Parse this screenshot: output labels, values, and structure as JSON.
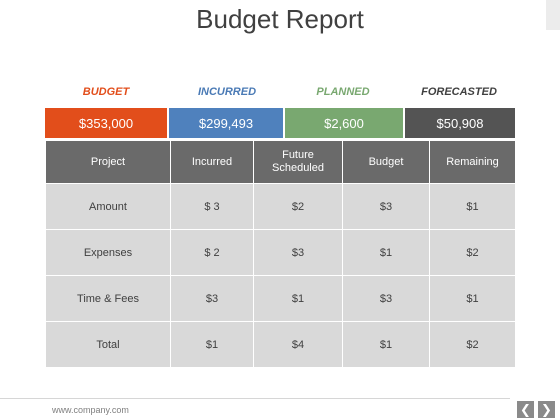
{
  "title": "Budget Report",
  "categories": [
    {
      "label": "BUDGET",
      "value": "$353,000",
      "label_color": "#e24e1b",
      "box_color": "#e24e1b"
    },
    {
      "label": "INCURRED",
      "value": "$299,493",
      "label_color": "#4a7ab5",
      "box_color": "#4f81bd"
    },
    {
      "label": "PLANNED",
      "value": "$2,600",
      "label_color": "#79a870",
      "box_color": "#79a870"
    },
    {
      "label": "FORECASTED",
      "value": "$50,908",
      "label_color": "#404040",
      "box_color": "#545454"
    }
  ],
  "table": {
    "headers": [
      "Project",
      "Incurred",
      "Future Scheduled",
      "Budget",
      "Remaining"
    ],
    "rows": [
      [
        "Amount",
        "$ 3",
        "$2",
        "$3",
        "$1"
      ],
      [
        "Expenses",
        "$ 2",
        "$3",
        "$1",
        "$2"
      ],
      [
        "Time & Fees",
        "$3",
        "$1",
        "$3",
        "$1"
      ],
      [
        "Total",
        "$1",
        "$4",
        "$1",
        "$2"
      ]
    ]
  },
  "footer": {
    "url": "www.company.com",
    "prev_icon": "chevron-left-icon",
    "next_icon": "chevron-right-icon"
  }
}
